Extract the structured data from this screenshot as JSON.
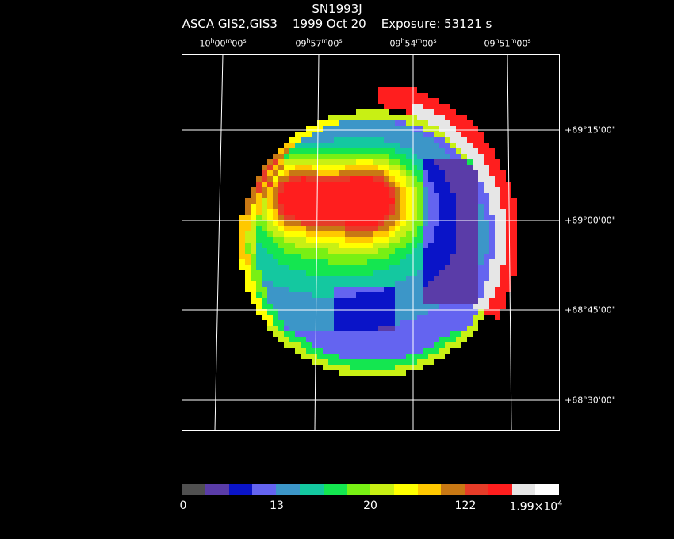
{
  "header": {
    "line1": "SN1993J",
    "line2": "ASCA GIS2,GIS3    1999 Oct 20    Exposure: 53121 s"
  },
  "ra_labels": [
    {
      "h": "10",
      "m": "00",
      "s": "00"
    },
    {
      "h": "09",
      "m": "57",
      "s": "00"
    },
    {
      "h": "09",
      "m": "54",
      "s": "00"
    },
    {
      "h": "09",
      "m": "51",
      "s": "00"
    }
  ],
  "dec_labels": [
    "+69°15'00\"",
    "+69°00'00\"",
    "+68°45'00\"",
    "+68°30'00\""
  ],
  "colorbar": {
    "colors": [
      "#505050",
      "#5a3ca8",
      "#0a14c8",
      "#6464f0",
      "#3c96c8",
      "#14c8a0",
      "#14e650",
      "#78f014",
      "#c8f014",
      "#ffff00",
      "#ffc800",
      "#c87814",
      "#e63c28",
      "#ff1e1e",
      "#e6e6e6",
      "#ffffff"
    ],
    "labels": [
      "0",
      "13",
      "20",
      "122"
    ],
    "max_base": "1.99×10",
    "max_exp": "4"
  },
  "image_colors": {
    "background": "#000000",
    "frame": "#ffffff",
    "grid": "#ffffff"
  }
}
